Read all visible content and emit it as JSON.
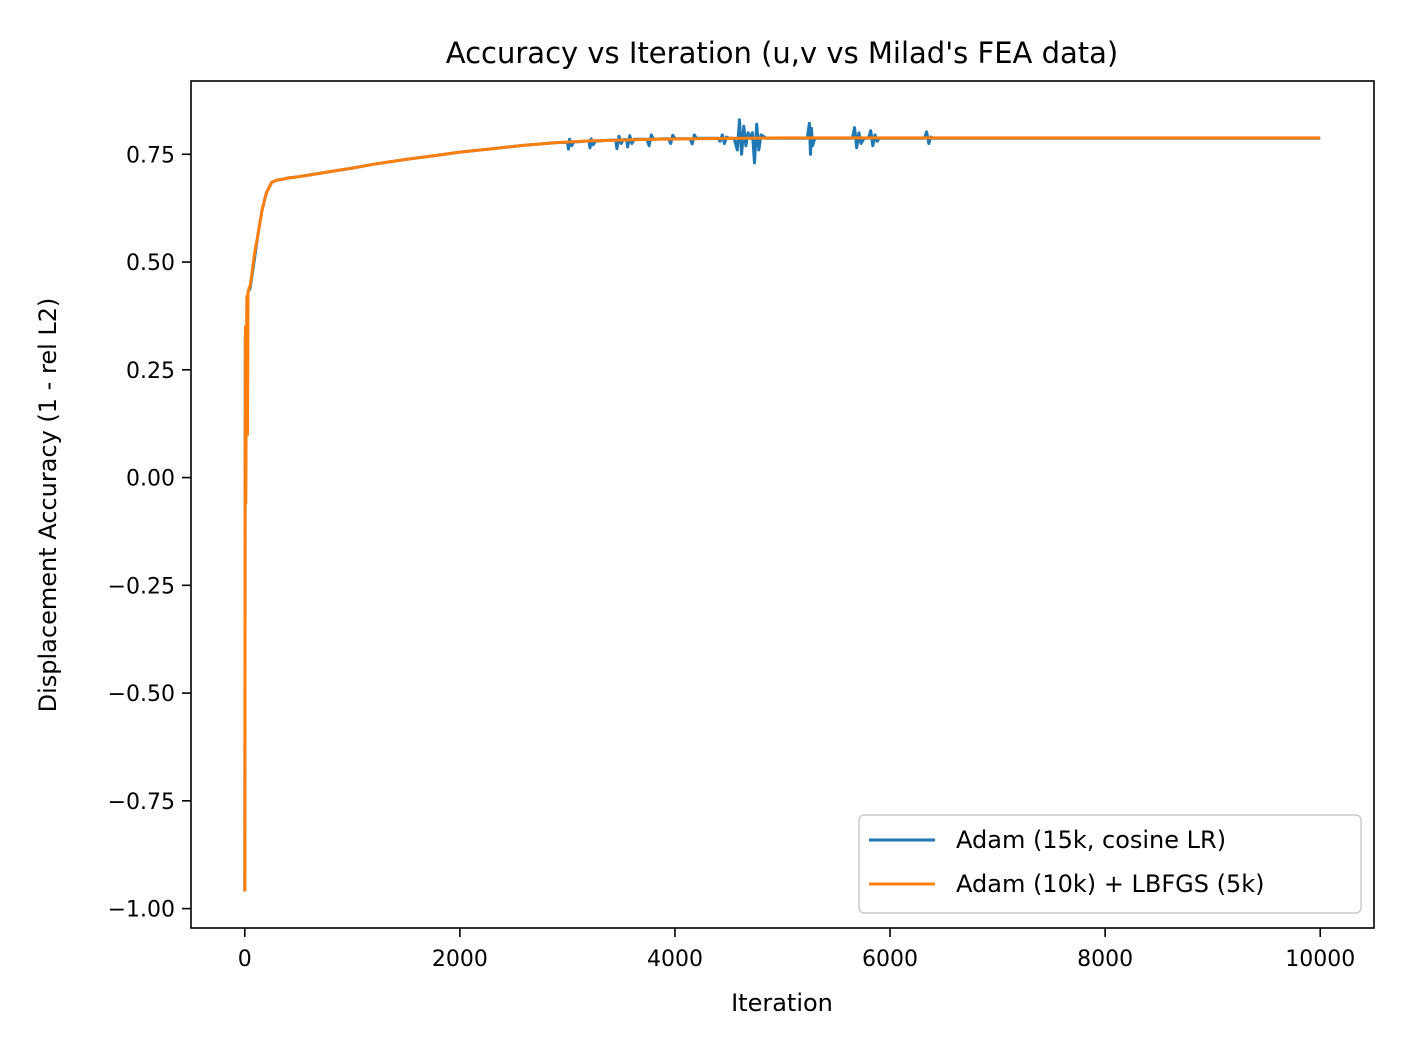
{
  "chart_data": {
    "type": "line",
    "title": "Accuracy vs Iteration (u,v vs Milad's FEA data)",
    "xlabel": "Iteration",
    "ylabel": "Displacement Accuracy (1 - rel L2)",
    "xlim": [
      -500,
      10500
    ],
    "ylim": [
      -1.045,
      0.92
    ],
    "xticks": [
      0,
      2000,
      4000,
      6000,
      8000,
      10000
    ],
    "xtick_labels": [
      "0",
      "2000",
      "4000",
      "6000",
      "8000",
      "10000"
    ],
    "yticks": [
      -1.0,
      -0.75,
      -0.5,
      -0.25,
      0.0,
      0.25,
      0.5,
      0.75
    ],
    "ytick_labels": [
      "−1.00",
      "−0.75",
      "−0.50",
      "−0.25",
      "0.00",
      "0.25",
      "0.50",
      "0.75"
    ],
    "grid": false,
    "legend_position": "lower-right",
    "series": [
      {
        "name": "Adam (15k, cosine LR)",
        "color": "#1f77b4",
        "x": [
          0,
          5,
          10,
          20,
          30,
          50,
          80,
          120,
          160,
          200,
          250,
          300,
          350,
          400,
          500,
          600,
          800,
          1000,
          1200,
          1500,
          1800,
          2000,
          2300,
          2600,
          2900,
          3000,
          3010,
          3020,
          3040,
          3060,
          3100,
          3200,
          3210,
          3220,
          3240,
          3260,
          3300,
          3400,
          3450,
          3460,
          3480,
          3500,
          3520,
          3550,
          3560,
          3580,
          3600,
          3620,
          3700,
          3740,
          3760,
          3780,
          3800,
          3900,
          3940,
          3960,
          3980,
          4000,
          4100,
          4140,
          4160,
          4180,
          4200,
          4300,
          4400,
          4420,
          4440,
          4460,
          4480,
          4500,
          4550,
          4580,
          4600,
          4620,
          4640,
          4660,
          4680,
          4700,
          4720,
          4740,
          4760,
          4780,
          4800,
          4850,
          4900,
          5000,
          5100,
          5200,
          5230,
          5250,
          5260,
          5270,
          5280,
          5300,
          5350,
          5400,
          5500,
          5600,
          5650,
          5670,
          5690,
          5710,
          5730,
          5760,
          5800,
          5820,
          5840,
          5860,
          5880,
          5900,
          6000,
          6100,
          6200,
          6300,
          6320,
          6340,
          6360,
          6380,
          6400,
          6600,
          7000,
          8000,
          9000,
          10000
        ],
        "y": [
          -0.96,
          0.33,
          0.1,
          0.35,
          0.43,
          0.44,
          0.49,
          0.56,
          0.62,
          0.66,
          0.685,
          0.69,
          0.692,
          0.695,
          0.698,
          0.702,
          0.71,
          0.718,
          0.727,
          0.738,
          0.748,
          0.755,
          0.763,
          0.771,
          0.777,
          0.778,
          0.762,
          0.785,
          0.77,
          0.779,
          0.779,
          0.781,
          0.765,
          0.786,
          0.772,
          0.781,
          0.781,
          0.783,
          0.783,
          0.763,
          0.792,
          0.775,
          0.784,
          0.784,
          0.767,
          0.793,
          0.775,
          0.785,
          0.785,
          0.785,
          0.77,
          0.795,
          0.785,
          0.786,
          0.786,
          0.775,
          0.794,
          0.786,
          0.786,
          0.786,
          0.774,
          0.795,
          0.787,
          0.787,
          0.787,
          0.78,
          0.795,
          0.775,
          0.79,
          0.787,
          0.787,
          0.76,
          0.83,
          0.75,
          0.815,
          0.77,
          0.8,
          0.787,
          0.8,
          0.73,
          0.82,
          0.76,
          0.795,
          0.787,
          0.787,
          0.787,
          0.787,
          0.787,
          0.787,
          0.822,
          0.75,
          0.81,
          0.77,
          0.787,
          0.787,
          0.787,
          0.787,
          0.787,
          0.787,
          0.812,
          0.765,
          0.8,
          0.775,
          0.787,
          0.787,
          0.805,
          0.77,
          0.795,
          0.78,
          0.787,
          0.787,
          0.787,
          0.787,
          0.787,
          0.787,
          0.802,
          0.775,
          0.79,
          0.787,
          0.787,
          0.787,
          0.787,
          0.787,
          0.787
        ]
      },
      {
        "name": "Adam (10k) + LBFGS (5k)",
        "color": "#ff7f0e",
        "x": [
          0,
          3,
          6,
          10,
          15,
          20,
          25,
          30,
          40,
          50,
          70,
          90,
          120,
          160,
          200,
          250,
          300,
          350,
          400,
          500,
          600,
          800,
          1000,
          1200,
          1500,
          1800,
          2000,
          2300,
          2600,
          2900,
          3200,
          3500,
          3800,
          4200,
          4600,
          5000,
          6000,
          7000,
          8000,
          9000,
          10000
        ],
        "y": [
          -0.96,
          -0.05,
          0.35,
          -0.06,
          0.3,
          0.42,
          0.1,
          0.43,
          0.44,
          0.445,
          0.48,
          0.52,
          0.56,
          0.62,
          0.66,
          0.685,
          0.69,
          0.692,
          0.695,
          0.698,
          0.702,
          0.71,
          0.718,
          0.727,
          0.738,
          0.748,
          0.755,
          0.763,
          0.771,
          0.777,
          0.781,
          0.783,
          0.785,
          0.786,
          0.787,
          0.788,
          0.788,
          0.788,
          0.788,
          0.788,
          0.788
        ]
      }
    ]
  }
}
